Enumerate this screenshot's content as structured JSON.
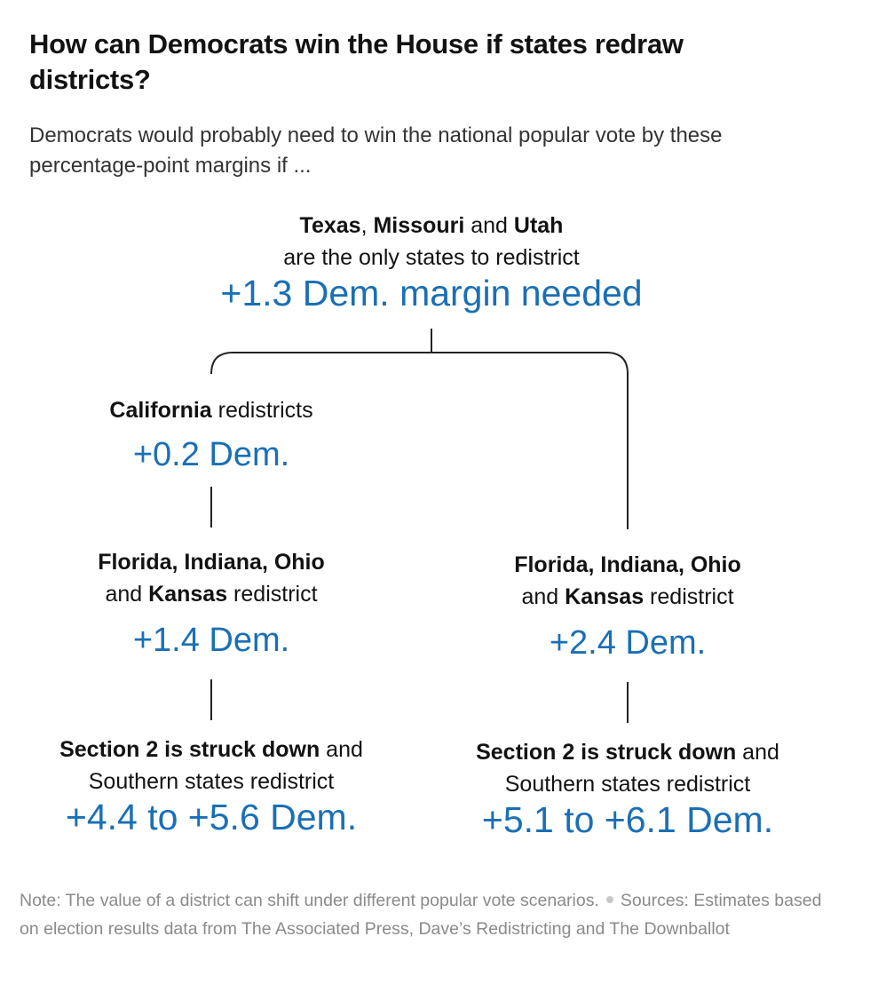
{
  "title": "How can Democrats win the House if states redraw districts?",
  "subtitle": "Democrats would probably need to win the national popular vote by these percentage-point margins if ...",
  "colors": {
    "value_blue": "#1a6fb5",
    "text": "#121212",
    "note_gray": "#8a8a8a",
    "connector": "#222222"
  },
  "tree": {
    "root": {
      "condition_parts": [
        "Texas",
        ", ",
        "Missouri",
        " and ",
        "Utah"
      ],
      "condition_line2": "are the only states to redistrict",
      "value": "+1.3 Dem. margin needed"
    },
    "left": {
      "ca": {
        "state": "California",
        "rest": " redistricts",
        "value": "+0.2 Dem."
      },
      "fl": {
        "bold1": "Florida, Indiana, Ohio",
        "and": "and ",
        "bold2": "Kansas",
        "rest": " redistrict",
        "value": "+1.4 Dem."
      },
      "s2": {
        "bold": "Section 2 is struck down",
        "rest": " and",
        "line2": "Southern states redistrict",
        "value": "+4.4 to +5.6 Dem."
      }
    },
    "right": {
      "fl": {
        "bold1": "Florida, Indiana, Ohio",
        "and": "and ",
        "bold2": "Kansas",
        "rest": " redistrict",
        "value": "+2.4 Dem."
      },
      "s2": {
        "bold": "Section 2 is struck down",
        "rest": " and",
        "line2": "Southern states redistrict",
        "value": "+5.1 to +6.1 Dem."
      }
    }
  },
  "footer": {
    "note": "Note: The value of a district can shift under different popular vote scenarios.",
    "sources": "Sources: Estimates based on election results data from The Associated Press, Dave’s Redistricting and The Downballot"
  }
}
